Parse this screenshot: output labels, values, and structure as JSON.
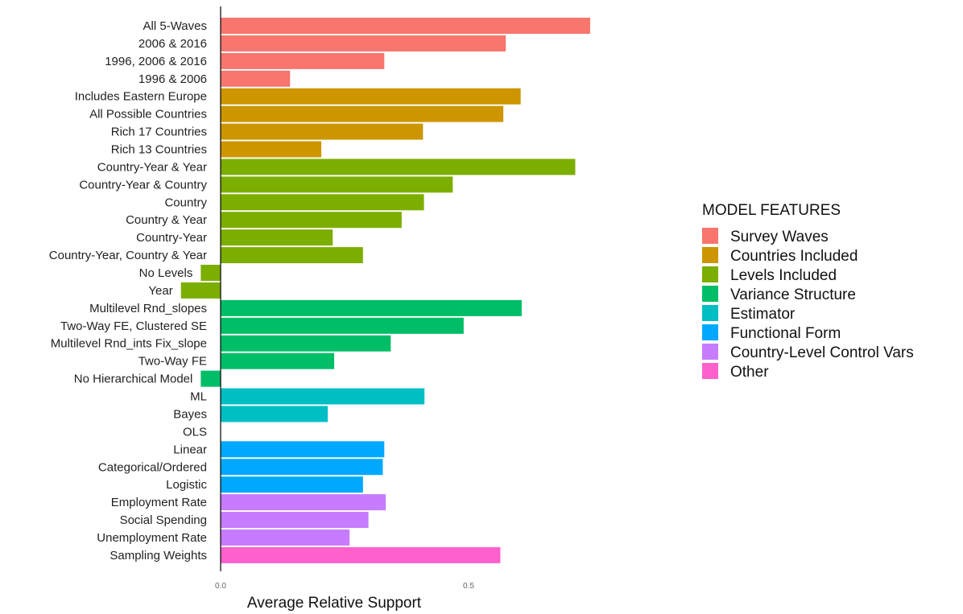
{
  "chart_data": {
    "type": "bar",
    "orientation": "horizontal",
    "xlabel": "Average Relative Support",
    "xticks": [
      0.0,
      0.5
    ],
    "xtick_labels": [
      "0.0",
      "0.5"
    ],
    "xlim": [
      -0.05,
      0.75
    ],
    "grid": false,
    "legend_title": "MODEL FEATURES",
    "legend_position": "right",
    "groups": [
      {
        "name": "Survey Waves",
        "color": "#F8766D"
      },
      {
        "name": "Countries Included",
        "color": "#CD9600"
      },
      {
        "name": "Levels Included",
        "color": "#7CAE00"
      },
      {
        "name": "Variance Structure",
        "color": "#00BE67"
      },
      {
        "name": "Estimator",
        "color": "#00BFC4"
      },
      {
        "name": "Functional Form",
        "color": "#00A9FF"
      },
      {
        "name": "Country-Level Control Vars",
        "color": "#C77CFF"
      },
      {
        "name": "Other",
        "color": "#FF61CC"
      }
    ],
    "bars": [
      {
        "label": "All 5-Waves",
        "value": 0.745,
        "group": 0
      },
      {
        "label": "2006 & 2016",
        "value": 0.575,
        "group": 0
      },
      {
        "label": "1996, 2006 & 2016",
        "value": 0.33,
        "group": 0
      },
      {
        "label": "1996 & 2006",
        "value": 0.14,
        "group": 0
      },
      {
        "label": "Includes Eastern Europe",
        "value": 0.605,
        "group": 1
      },
      {
        "label": "All Possible Countries",
        "value": 0.57,
        "group": 1
      },
      {
        "label": "Rich 17 Countries",
        "value": 0.408,
        "group": 1
      },
      {
        "label": "Rich 13 Countries",
        "value": 0.203,
        "group": 1
      },
      {
        "label": "Country-Year & Year",
        "value": 0.715,
        "group": 2
      },
      {
        "label": "Country-Year & Country",
        "value": 0.468,
        "group": 2
      },
      {
        "label": "Country",
        "value": 0.41,
        "group": 2
      },
      {
        "label": "Country & Year",
        "value": 0.365,
        "group": 2
      },
      {
        "label": "Country-Year",
        "value": 0.226,
        "group": 2
      },
      {
        "label": "Country-Year, Country & Year",
        "value": 0.287,
        "group": 2
      },
      {
        "label": "No Levels",
        "value": -0.04,
        "group": 2
      },
      {
        "label": "Year",
        "value": -0.08,
        "group": 2
      },
      {
        "label": "Multilevel Rnd_slopes",
        "value": 0.607,
        "group": 3
      },
      {
        "label": "Two-Way FE, Clustered SE",
        "value": 0.49,
        "group": 3
      },
      {
        "label": "Multilevel Rnd_ints Fix_slope",
        "value": 0.343,
        "group": 3
      },
      {
        "label": "Two-Way FE",
        "value": 0.229,
        "group": 3
      },
      {
        "label": "No Hierarchical Model",
        "value": -0.04,
        "group": 3
      },
      {
        "label": "ML",
        "value": 0.411,
        "group": 4
      },
      {
        "label": "Bayes",
        "value": 0.216,
        "group": 4
      },
      {
        "label": "OLS",
        "value": 0.0,
        "group": 4
      },
      {
        "label": "Linear",
        "value": 0.33,
        "group": 5
      },
      {
        "label": "Categorical/Ordered",
        "value": 0.327,
        "group": 5
      },
      {
        "label": "Logistic",
        "value": 0.287,
        "group": 5
      },
      {
        "label": "Employment Rate",
        "value": 0.333,
        "group": 6
      },
      {
        "label": "Social Spending",
        "value": 0.298,
        "group": 6
      },
      {
        "label": "Unemployment Rate",
        "value": 0.26,
        "group": 6
      },
      {
        "label": "Sampling Weights",
        "value": 0.564,
        "group": 7
      }
    ]
  }
}
